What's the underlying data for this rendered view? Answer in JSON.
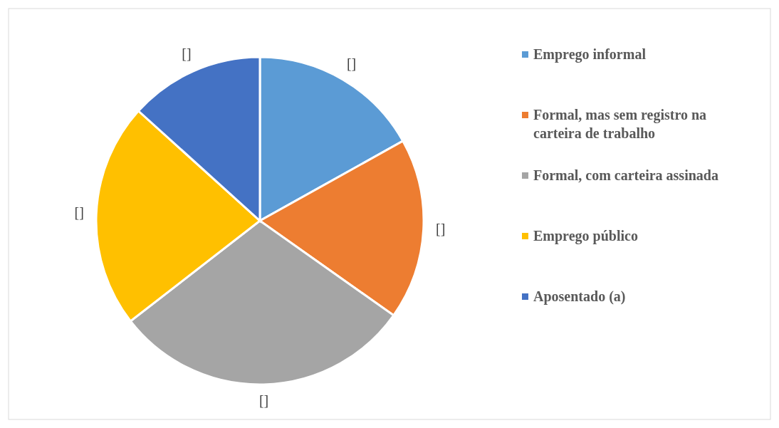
{
  "chart_data": {
    "type": "pie",
    "categories": [
      "Emprego informal",
      "Formal, mas sem registro na carteira de trabalho",
      "Formal, com carteira assinada",
      " Emprego público",
      "Aposentado (a)"
    ],
    "values": [
      16.9,
      17.9,
      29.7,
      22.2,
      13.3
    ],
    "colors": [
      "#5b9bd5",
      "#ed7d31",
      "#a5a5a5",
      "#ffc000",
      "#4472c4"
    ],
    "value_labels": [
      "[]",
      "[]",
      "[]",
      "[]",
      "[]"
    ],
    "legend": "right"
  }
}
